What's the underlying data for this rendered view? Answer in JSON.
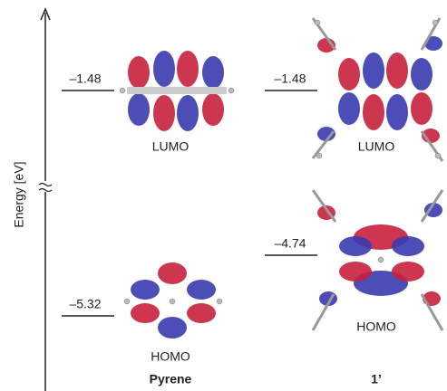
{
  "axis_label": "Energy [eV]",
  "molecules": [
    {
      "name": "Pyrene",
      "levels": [
        {
          "energy": "–1.48",
          "label": "LUMO"
        },
        {
          "energy": "–5.32",
          "label": "HOMO"
        }
      ]
    },
    {
      "name": "1’",
      "levels": [
        {
          "energy": "–1.48",
          "label": "LUMO"
        },
        {
          "energy": "–4.74",
          "label": "HOMO"
        }
      ]
    }
  ]
}
